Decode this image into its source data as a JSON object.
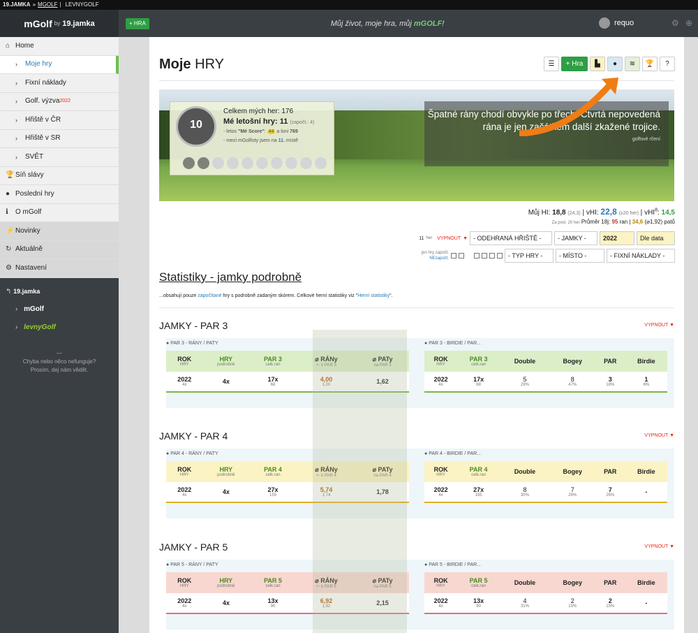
{
  "topbar": {
    "site": "19.JAMKA",
    "sep": "»",
    "current": "MGOLF",
    "pipe": "|",
    "other": "LEVNYGOLF"
  },
  "header": {
    "logo": "mGolf",
    "by": "by",
    "partner": "19.jamka",
    "new_game": "+ HRA",
    "motto_a": "Můj život, moje hra, můj ",
    "motto_b": "mGOLF",
    "motto_c": "!",
    "user": "requo"
  },
  "nav": {
    "items": [
      {
        "label": "Home",
        "icon": "⌂",
        "sub": false
      },
      {
        "label": "Moje hry",
        "icon": "›",
        "sub": true,
        "active": true
      },
      {
        "label": "Fixní náklady",
        "icon": "›",
        "sub": true
      },
      {
        "label": "Golf. výzva",
        "icon": "›",
        "sub": true,
        "sup": "2022"
      },
      {
        "label": "Hřiště v ČR",
        "icon": "›",
        "sub": true
      },
      {
        "label": "Hřiště v SR",
        "icon": "›",
        "sub": true
      },
      {
        "label": "SVĚT",
        "icon": "›",
        "sub": true
      },
      {
        "label": "Síň slávy",
        "icon": "🏆",
        "sub": false
      },
      {
        "label": "Poslední hry",
        "icon": "●",
        "sub": false
      },
      {
        "label": "O mGolf",
        "icon": "ℹ",
        "sub": false
      },
      {
        "label": "Novinky",
        "icon": "⚡",
        "sub": false,
        "grey": true
      },
      {
        "label": "Aktuálně",
        "icon": "↻",
        "sub": false,
        "grey": true
      },
      {
        "label": "Nastavení",
        "icon": "⚙",
        "sub": false,
        "grey": true
      }
    ]
  },
  "ext": {
    "partner": "19.jamka",
    "mgolf": "mGolf",
    "levny": "levnyGolf",
    "dash": "—",
    "err1": "Chyba nebo něco nefunguje?",
    "err2": "Prosím, dej nám vědět."
  },
  "page": {
    "title_a": "Moje",
    "title_b": "HRY",
    "new_btn": "+ Hra"
  },
  "banner": {
    "badge": "10",
    "total": "Celkem mých her: 176",
    "season_label": "Mé letošní hry:",
    "season_count": "11",
    "season_note": "(započt.: 4)",
    "score_a": "- letos ",
    "score_b": "\"Mé Score\"",
    "score_c": ": ",
    "score_val": "44",
    "score_d": " a loni ",
    "score_prev": "769",
    "rank_a": "- mezi mGolfisty jsem na ",
    "rank_val": "11.",
    "rank_b": " místě",
    "quote": "Špatné rány chodí obvykle po třech. Čtvrtá nepovedená rána je jen začátkem další zkažené trojice.",
    "quote_src": "golfové rčení"
  },
  "hi": {
    "hi_label": "Můj HI:",
    "hi": "18,8",
    "hi_note": "(24,3)",
    "vhi_label": "vHI:",
    "vhi": "22,8",
    "vhi_note": "(≥20 her)",
    "vhi8_label": "vHI",
    "vhi8_sup": "8",
    "vhi8": "14,5",
    "avg_note": "Za posl. 20 her",
    "avg_label": "Průměr 18j:",
    "avg_shots": "95",
    "avg_shots_unit": " ran",
    "avg_putts": "34,6",
    "avg_putts_note": "(⌀1,92)",
    "avg_putts_unit": " patů"
  },
  "filters": {
    "count": "11",
    "count_unit": "her",
    "off": "VYPNOUT",
    "course": "- ODEHRANÁ HŘIŠTĚ -",
    "holes": "- JAMKY -",
    "year": "2022",
    "order": "Dle data",
    "only_label": "jen hry započt.",
    "not_counted": "NEzapočt.",
    "game_type": "- TYP HRY -",
    "place": "- MÍSTO -",
    "fixed": "- FIXNÍ NÁKLADY -"
  },
  "section": {
    "title": "Statistiky - jamky podrobně",
    "note_a": "...obsahují pouze ",
    "note_link": "započítané",
    "note_b": " hry s podrobně zadaným skórem. Celkové herní statistiky viz \"",
    "note_link2": "Herní statistiky",
    "note_c": "\".",
    "off": "VYPNOUT ▼"
  },
  "pars": [
    {
      "title": "JAMKY - PAR 3",
      "left_label": "PAR 3 - RÁNY / PATY",
      "right_label": "PAR 3 - BIRDIE / PAR...",
      "pname": "PAR 3",
      "avg_sub": "+- k PAR 3",
      "putt_sub": "na PAR 3",
      "year": "2022",
      "cnt": "4x",
      "games": "4x",
      "holes": "17x",
      "holes_sub": "68",
      "shots": "4,00",
      "shots_sub": "1,00",
      "putts": "1,62",
      "double": "5",
      "double_p": "29%",
      "bogey": "8",
      "bogey_p": "47%",
      "par": "3",
      "par_p": "18%",
      "birdie": "1",
      "birdie_p": "6%"
    },
    {
      "title": "JAMKY - PAR 4",
      "left_label": "PAR 4 - RÁNY / PATY",
      "right_label": "PAR 4 - BIRDIE / PAR...",
      "pname": "PAR 4",
      "avg_sub": "+- k PAR 4",
      "putt_sub": "na PAR 4",
      "year": "2022",
      "cnt": "4x",
      "games": "4x",
      "holes": "27x",
      "holes_sub": "155",
      "shots": "5,74",
      "shots_sub": "1,74",
      "putts": "1,78",
      "double": "8",
      "double_p": "30%",
      "bogey": "7",
      "bogey_p": "26%",
      "par": "7",
      "par_p": "26%",
      "birdie": "-",
      "birdie_p": ""
    },
    {
      "title": "JAMKY - PAR 5",
      "left_label": "PAR 5 - RÁNY / PATY",
      "right_label": "PAR 5 - BIRDIE / PAR...",
      "pname": "PAR 5",
      "avg_sub": "+- k PAR 5",
      "putt_sub": "na PAR 5",
      "year": "2022",
      "cnt": "4x",
      "games": "4x",
      "holes": "13x",
      "holes_sub": "90",
      "shots": "6,92",
      "shots_sub": "1,92",
      "putts": "2,15",
      "double": "4",
      "double_p": "31%",
      "bogey": "2",
      "bogey_p": "15%",
      "par": "2",
      "par_p": "15%",
      "birdie": "-",
      "birdie_p": ""
    }
  ],
  "cols": {
    "rok": "ROK",
    "hry_sub": "HRY",
    "hry": "HRY",
    "podrobne": "podrobně",
    "celkran": "celk.ran",
    "avg": "⌀ RÁNy",
    "putt": "⌀ PATy",
    "double": "Double",
    "bogey": "Bogey",
    "par": "PAR",
    "birdie": "Birdie"
  },
  "colors": {
    "par3": "#dceec8",
    "par4": "#fbf3c3",
    "par5": "#f8d7d0",
    "par3_line": "#7ab648",
    "par4_line": "#e0b020",
    "par5_line": "#e07080",
    "accent": "#2f9e44"
  }
}
